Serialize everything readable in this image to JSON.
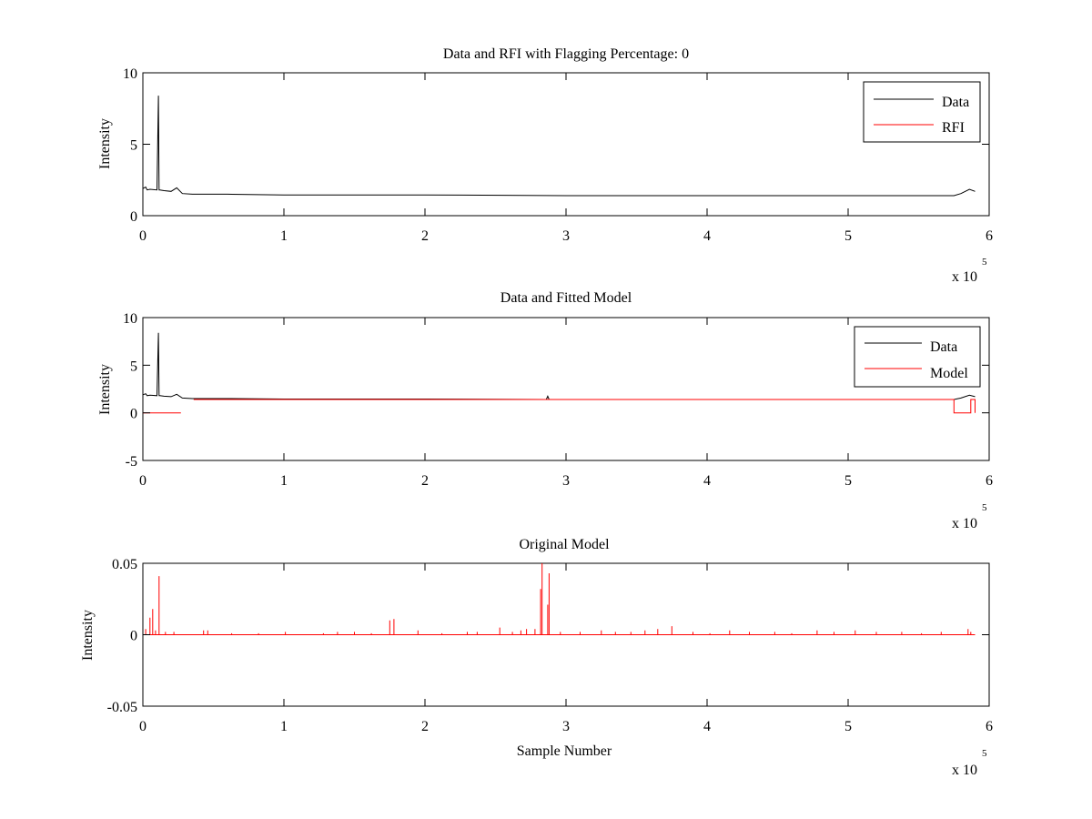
{
  "figure": {
    "background": "#ffffff"
  },
  "colors": {
    "data": "#000000",
    "rfi": "#ff0000",
    "axis": "#000000"
  },
  "chart_data": [
    {
      "type": "line",
      "title": "Data and RFI with Flagging Percentage: 0",
      "xlabel": "",
      "ylabel": "Intensity",
      "xlim": [
        0,
        600000
      ],
      "ylim": [
        0,
        10
      ],
      "xticks": [
        0,
        100000,
        200000,
        300000,
        400000,
        500000,
        600000
      ],
      "xtick_labels": [
        "0",
        "1",
        "2",
        "3",
        "4",
        "5",
        "6"
      ],
      "yticks": [
        0,
        5,
        10
      ],
      "ytick_labels": [
        "0",
        "5",
        "10"
      ],
      "x_multiplier": {
        "base": "x 10",
        "exponent": "5"
      },
      "legend": {
        "placement": "top-right",
        "entries": [
          {
            "label": "Data",
            "color": "#000000"
          },
          {
            "label": "RFI",
            "color": "#ff0000"
          }
        ]
      },
      "series": [
        {
          "name": "Data",
          "color": "#000000",
          "x": [
            0,
            2000,
            3000,
            5000,
            10000,
            11000,
            11500,
            12000,
            15000,
            20000,
            24000,
            28000,
            35000,
            60000,
            100000,
            200000,
            300000,
            400000,
            500000,
            575000,
            580000,
            586000,
            590000
          ],
          "y": [
            1.9,
            2.0,
            1.8,
            1.85,
            1.8,
            8.4,
            1.8,
            1.8,
            1.75,
            1.7,
            1.95,
            1.55,
            1.5,
            1.5,
            1.45,
            1.45,
            1.4,
            1.4,
            1.4,
            1.4,
            1.55,
            1.85,
            1.7
          ]
        }
      ]
    },
    {
      "type": "line",
      "title": "Data and Fitted Model",
      "xlabel": "",
      "ylabel": "Intensity",
      "xlim": [
        0,
        600000
      ],
      "ylim": [
        -5,
        10
      ],
      "xticks": [
        0,
        100000,
        200000,
        300000,
        400000,
        500000,
        600000
      ],
      "xtick_labels": [
        "0",
        "1",
        "2",
        "3",
        "4",
        "5",
        "6"
      ],
      "yticks": [
        -5,
        0,
        5,
        10
      ],
      "ytick_labels": [
        "-5",
        "0",
        "5",
        "10"
      ],
      "x_multiplier": {
        "base": "x 10",
        "exponent": "5"
      },
      "legend": {
        "placement": "top-right",
        "entries": [
          {
            "label": "Data",
            "color": "#000000"
          },
          {
            "label": "Model",
            "color": "#ff0000"
          }
        ]
      },
      "series": [
        {
          "name": "Data",
          "color": "#000000",
          "x": [
            0,
            2000,
            3000,
            5000,
            10000,
            11000,
            11500,
            12000,
            15000,
            20000,
            24000,
            28000,
            35000,
            60000,
            100000,
            200000,
            286000,
            287000,
            288000,
            400000,
            500000,
            575000,
            580000,
            586000,
            590000
          ],
          "y": [
            1.9,
            2.0,
            1.8,
            1.85,
            1.8,
            8.4,
            1.8,
            1.8,
            1.75,
            1.7,
            1.95,
            1.55,
            1.5,
            1.5,
            1.45,
            1.45,
            1.4,
            1.75,
            1.4,
            1.4,
            1.4,
            1.4,
            1.55,
            1.85,
            1.7
          ]
        },
        {
          "name": "Model",
          "color": "#ff0000",
          "x": [
            0,
            27000,
            null,
            36000,
            575000,
            575000,
            587000,
            587000,
            590000,
            590000
          ],
          "y": [
            0,
            0,
            null,
            1.4,
            1.4,
            0,
            0,
            1.4,
            1.4,
            0
          ]
        }
      ]
    },
    {
      "type": "line",
      "title": "Original Model",
      "xlabel": "Sample Number",
      "ylabel": "Intensity",
      "xlim": [
        0,
        600000
      ],
      "ylim": [
        -0.05,
        0.05
      ],
      "xticks": [
        0,
        100000,
        200000,
        300000,
        400000,
        500000,
        600000
      ],
      "xtick_labels": [
        "0",
        "1",
        "2",
        "3",
        "4",
        "5",
        "6"
      ],
      "yticks": [
        -0.05,
        0,
        0.05
      ],
      "ytick_labels": [
        "-0.05",
        "0",
        "0.05"
      ],
      "x_multiplier": {
        "base": "x 10",
        "exponent": "5"
      },
      "series": [
        {
          "color": "#ff0000",
          "baseline": 0,
          "x_range": [
            0,
            590000
          ],
          "spikes": [
            [
              2000,
              0.004
            ],
            [
              5000,
              0.012
            ],
            [
              7000,
              0.018
            ],
            [
              9000,
              0.003
            ],
            [
              11500,
              0.041
            ],
            [
              16000,
              0.002
            ],
            [
              22000,
              0.002
            ],
            [
              43000,
              0.003
            ],
            [
              46000,
              0.003
            ],
            [
              63000,
              0.001
            ],
            [
              82000,
              0.001
            ],
            [
              101000,
              0.002
            ],
            [
              128000,
              0.001
            ],
            [
              138000,
              0.002
            ],
            [
              150000,
              0.002
            ],
            [
              162000,
              0.001
            ],
            [
              175000,
              0.01
            ],
            [
              178000,
              0.011
            ],
            [
              195000,
              0.003
            ],
            [
              212000,
              0.001
            ],
            [
              230000,
              0.002
            ],
            [
              237000,
              0.002
            ],
            [
              253000,
              0.005
            ],
            [
              262000,
              0.002
            ],
            [
              268000,
              0.003
            ],
            [
              272000,
              0.004
            ],
            [
              278000,
              0.004
            ],
            [
              282000,
              0.032
            ],
            [
              283000,
              0.05
            ],
            [
              287000,
              0.021
            ],
            [
              288000,
              0.043
            ],
            [
              296000,
              0.002
            ],
            [
              310000,
              0.002
            ],
            [
              325000,
              0.003
            ],
            [
              335000,
              0.002
            ],
            [
              346000,
              0.002
            ],
            [
              356000,
              0.003
            ],
            [
              365000,
              0.004
            ],
            [
              375000,
              0.006
            ],
            [
              390000,
              0.002
            ],
            [
              402000,
              0.001
            ],
            [
              416000,
              0.003
            ],
            [
              430000,
              0.002
            ],
            [
              448000,
              0.002
            ],
            [
              460000,
              0.001
            ],
            [
              478000,
              0.003
            ],
            [
              490000,
              0.002
            ],
            [
              505000,
              0.003
            ],
            [
              520000,
              0.002
            ],
            [
              538000,
              0.002
            ],
            [
              552000,
              0.001
            ],
            [
              566000,
              0.002
            ],
            [
              585000,
              0.004
            ],
            [
              587000,
              0.002
            ]
          ]
        }
      ]
    }
  ]
}
